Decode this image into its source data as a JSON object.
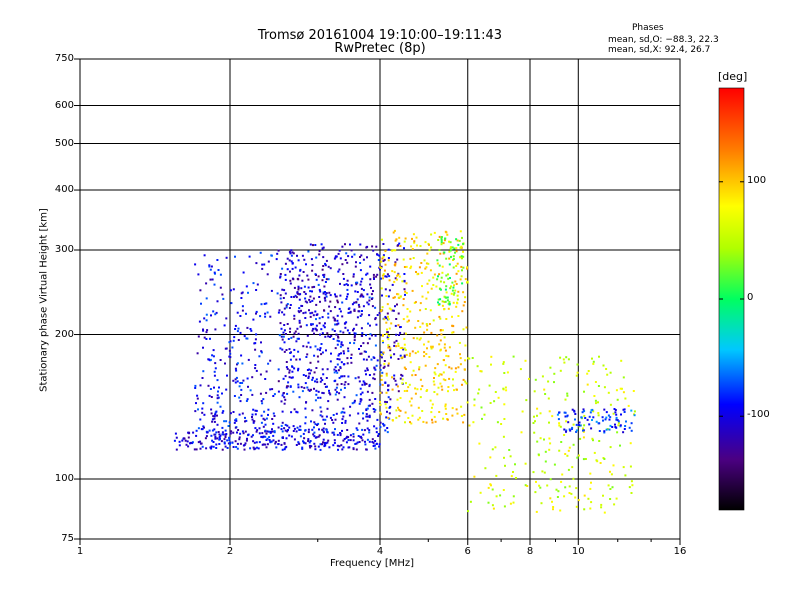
{
  "chart_data": {
    "type": "scatter",
    "title": "Tromsø 20161004 19:10:00–19:11:43",
    "subtitle": "RwPretec (8p)",
    "xlabel": "Frequency [MHz]",
    "ylabel": "Stationary phase Virtual Height [km]",
    "x_scale": "log",
    "y_scale": "log",
    "xlim": [
      1,
      16
    ],
    "ylim": [
      75,
      750
    ],
    "xticks": [
      1,
      2,
      4,
      6,
      8,
      10,
      16
    ],
    "yticks": [
      75,
      100,
      200,
      300,
      400,
      500,
      600,
      750
    ],
    "grid": true,
    "stats_heading": "Phases",
    "stats": [
      "mean, sd,O: −88.3, 22.3",
      "mean, sd,X:  92.4, 26.7"
    ],
    "colorbar": {
      "label": "[deg]",
      "range": [
        -180,
        180
      ],
      "ticks": [
        100,
        0,
        -100
      ],
      "colormap": "rainbow"
    },
    "point_clusters": [
      {
        "region": "O-mode low-height trace",
        "x_range": [
          1.55,
          4.0
        ],
        "y_range": [
          115,
          125
        ],
        "phase": -100
      },
      {
        "region": "O-mode F-region spread",
        "x_range": [
          1.7,
          4.2
        ],
        "y_range": [
          125,
          300
        ],
        "phase": -95
      },
      {
        "region": "O-mode F-region blue cloud",
        "x_range": [
          2.5,
          4.5
        ],
        "y_range": [
          150,
          310
        ],
        "phase": -110
      },
      {
        "region": "X-mode band",
        "x_range": [
          4.0,
          6.0
        ],
        "y_range": [
          130,
          330
        ],
        "phase": 90
      },
      {
        "region": "green spread",
        "x_range": [
          5.2,
          5.9
        ],
        "y_range": [
          230,
          320
        ],
        "phase": 20
      },
      {
        "region": "high-frequency scatter",
        "x_range": [
          6.0,
          13.0
        ],
        "y_range": [
          85,
          180
        ],
        "phase": 60
      },
      {
        "region": "trailing blue trace",
        "x_range": [
          9.0,
          13.0
        ],
        "y_range": [
          125,
          140
        ],
        "phase": -80
      }
    ]
  }
}
